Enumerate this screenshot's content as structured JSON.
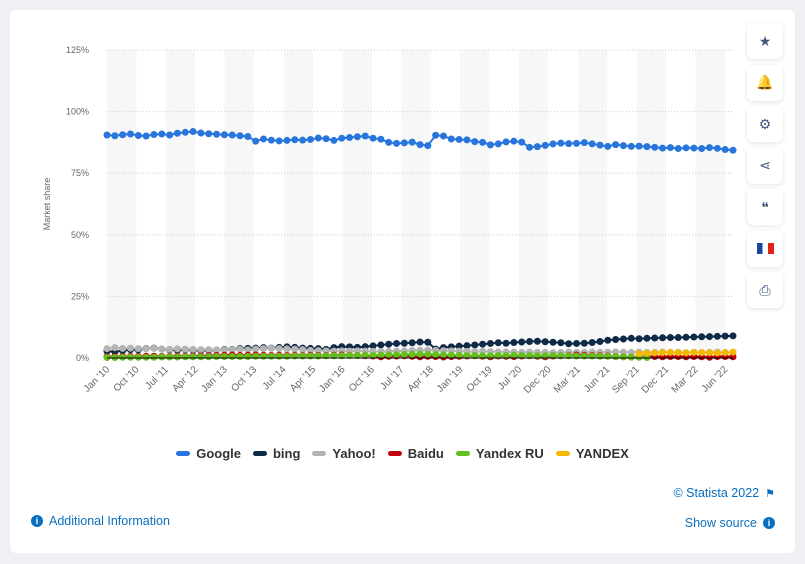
{
  "chart_data": {
    "type": "line",
    "title": "",
    "xlabel": "",
    "ylabel": "Market share",
    "ylim": [
      0,
      125
    ],
    "yticks": [
      "0%",
      "25%",
      "50%",
      "75%",
      "100%",
      "125%"
    ],
    "x_tick_labels": [
      "Jan '10",
      "Oct '10",
      "Jul '11",
      "Apr '12",
      "Jan '13",
      "Oct '13",
      "Jul '14",
      "Apr '15",
      "Jan '16",
      "Oct '16",
      "Jul '17",
      "Apr '18",
      "Jan '19",
      "Oct '19",
      "Jul '20",
      "Dec '20",
      "Mar '21",
      "Jun '21",
      "Sep '21",
      "Dec '21",
      "Mar '22",
      "Jun '22"
    ],
    "grid": true,
    "legend_position": "bottom",
    "series": [
      {
        "name": "Google",
        "color": "#2876dd",
        "values": [
          90.5,
          90.2,
          90.6,
          90.9,
          90.3,
          90.1,
          90.7,
          90.9,
          90.5,
          91.2,
          91.6,
          91.9,
          91.3,
          91.0,
          90.8,
          90.6,
          90.5,
          90.2,
          89.9,
          88.0,
          88.9,
          88.4,
          88.1,
          88.3,
          88.6,
          88.4,
          88.7,
          89.3,
          89.0,
          88.3,
          89.2,
          89.5,
          89.8,
          90.1,
          89.2,
          88.8,
          87.5,
          87.1,
          87.3,
          87.6,
          86.6,
          86.2,
          90.4,
          90.1,
          88.9,
          88.7,
          88.5,
          87.8,
          87.5,
          86.5,
          86.9,
          87.7,
          88.0,
          87.6,
          85.5,
          85.8,
          86.3,
          86.9,
          87.2,
          87.0,
          87.1,
          87.4,
          86.9,
          86.4,
          85.9,
          86.6,
          86.2,
          85.9,
          86.0,
          85.8,
          85.5,
          85.2,
          85.4,
          85.0,
          85.3,
          85.2,
          85.0,
          85.4,
          85.1,
          84.6,
          84.3
        ]
      },
      {
        "name": "bing",
        "color": "#0f2a46",
        "values": [
          2.8,
          2.5,
          3.0,
          3.4,
          3.3,
          3.8,
          4.0,
          3.6,
          3.3,
          3.2,
          3.4,
          3.2,
          3.0,
          3.1,
          3.2,
          3.4,
          3.5,
          3.8,
          3.9,
          4.0,
          4.2,
          4.0,
          4.3,
          4.5,
          4.3,
          4.0,
          3.9,
          3.8,
          3.5,
          4.2,
          4.6,
          4.5,
          4.3,
          4.6,
          4.9,
          5.3,
          5.6,
          5.9,
          6.0,
          6.2,
          6.5,
          6.4,
          3.6,
          4.2,
          4.5,
          4.8,
          5.0,
          5.3,
          5.6,
          5.9,
          6.2,
          6.0,
          6.3,
          6.5,
          6.7,
          6.8,
          6.6,
          6.4,
          6.2,
          5.8,
          5.9,
          6.0,
          6.3,
          6.7,
          7.2,
          7.5,
          7.7,
          8.0,
          7.8,
          8.0,
          8.1,
          8.2,
          8.3,
          8.3,
          8.4,
          8.5,
          8.6,
          8.7,
          8.8,
          8.9,
          9.0
        ]
      },
      {
        "name": "Yahoo!",
        "color": "#b4b4b4",
        "values": [
          3.8,
          4.2,
          3.9,
          4.0,
          3.8,
          3.7,
          3.9,
          3.6,
          3.5,
          3.7,
          3.6,
          3.5,
          3.4,
          3.4,
          3.3,
          3.2,
          3.4,
          3.5,
          3.3,
          3.6,
          3.8,
          3.9,
          3.8,
          3.7,
          3.6,
          3.4,
          3.1,
          3.0,
          2.9,
          2.8,
          2.9,
          2.8,
          2.9,
          2.8,
          2.7,
          2.6,
          2.7,
          2.8,
          2.9,
          3.0,
          3.1,
          3.2,
          3.1,
          3.0,
          2.9,
          2.8,
          2.7,
          2.6,
          2.7,
          2.6,
          2.5,
          2.5,
          2.4,
          2.3,
          2.4,
          2.3,
          2.3,
          2.2,
          2.3,
          2.4,
          2.3,
          2.3,
          2.4,
          2.3,
          2.4,
          2.5,
          2.4,
          2.3,
          2.4,
          2.3,
          2.3,
          2.4,
          2.3,
          2.3,
          2.2,
          2.3,
          2.2,
          2.3,
          2.4,
          2.3,
          2.2
        ]
      },
      {
        "name": "Baidu",
        "color": "#c4000d",
        "values": [
          0.5,
          0.5,
          0.6,
          0.6,
          0.6,
          0.7,
          0.7,
          0.6,
          0.6,
          0.7,
          0.7,
          0.8,
          0.8,
          0.9,
          1.0,
          1.1,
          1.2,
          1.0,
          1.1,
          1.2,
          1.1,
          1.0,
          1.1,
          1.0,
          1.1,
          1.0,
          1.1,
          1.0,
          1.0,
          1.1,
          1.2,
          1.1,
          1.0,
          0.9,
          0.8,
          0.5,
          0.7,
          0.8,
          0.9,
          0.7,
          0.5,
          0.7,
          0.6,
          0.4,
          0.6,
          0.7,
          0.8,
          0.9,
          0.7,
          0.5,
          0.8,
          0.7,
          0.6,
          0.8,
          0.9,
          0.7,
          0.5,
          0.8,
          0.9,
          1.0,
          1.2,
          1.1,
          1.0,
          0.9,
          0.8,
          0.6,
          0.5,
          0.4,
          0.5,
          0.6,
          0.6,
          0.5,
          0.6,
          0.6,
          0.5,
          0.6,
          0.5,
          0.3,
          0.6,
          0.6,
          0.5
        ]
      },
      {
        "name": "Yandex RU",
        "color": "#64c01e",
        "values": [
          0.2,
          0.2,
          0.3,
          0.3,
          0.3,
          0.3,
          0.3,
          0.4,
          0.4,
          0.4,
          0.5,
          0.5,
          0.5,
          0.5,
          0.6,
          0.6,
          0.6,
          0.6,
          0.6,
          0.7,
          0.7,
          0.7,
          0.7,
          0.7,
          0.8,
          0.8,
          0.8,
          0.8,
          0.9,
          0.9,
          0.9,
          1.0,
          1.0,
          1.1,
          1.1,
          1.2,
          1.3,
          1.3,
          1.4,
          1.5,
          1.6,
          1.5,
          1.4,
          1.3,
          1.2,
          1.1,
          1.0,
          1.0,
          0.9,
          0.9,
          1.0,
          1.0,
          1.1,
          1.0,
          1.0,
          0.9,
          0.9,
          1.0,
          0.9,
          0.9,
          0.8,
          0.8,
          0.8,
          0.7,
          0.7,
          0.6,
          0.5,
          0.4,
          0.3,
          0.2,
          null,
          null,
          null,
          null,
          null,
          null,
          null,
          null,
          null,
          null,
          null
        ]
      },
      {
        "name": "YANDEX",
        "color": "#f5b800",
        "values": [
          null,
          null,
          null,
          null,
          null,
          null,
          null,
          null,
          null,
          null,
          null,
          null,
          null,
          null,
          null,
          null,
          null,
          null,
          null,
          null,
          null,
          null,
          null,
          null,
          null,
          null,
          null,
          null,
          null,
          null,
          null,
          null,
          null,
          null,
          null,
          null,
          null,
          null,
          null,
          null,
          null,
          null,
          null,
          null,
          null,
          null,
          null,
          null,
          null,
          null,
          null,
          null,
          null,
          null,
          null,
          null,
          null,
          null,
          null,
          null,
          null,
          null,
          null,
          null,
          null,
          null,
          null,
          null,
          1.8,
          2.0,
          2.1,
          2.2,
          2.3,
          2.2,
          2.1,
          2.3,
          2.2,
          2.2,
          2.1,
          2.2,
          2.4
        ]
      }
    ]
  },
  "sidebar": {
    "buttons": [
      {
        "icon": "star-icon",
        "glyph": "★"
      },
      {
        "icon": "bell-icon",
        "glyph": "🔔"
      },
      {
        "icon": "gear-icon",
        "glyph": "⚙"
      },
      {
        "icon": "share-icon",
        "glyph": "⋖"
      },
      {
        "icon": "quote-icon",
        "glyph": "❝"
      },
      {
        "icon": "french-flag-icon",
        "glyph": ""
      },
      {
        "icon": "print-icon",
        "glyph": "⎙"
      }
    ]
  },
  "footer": {
    "additional_info": "Additional Information",
    "copyright": "© Statista 2022",
    "show_source": "Show source"
  }
}
